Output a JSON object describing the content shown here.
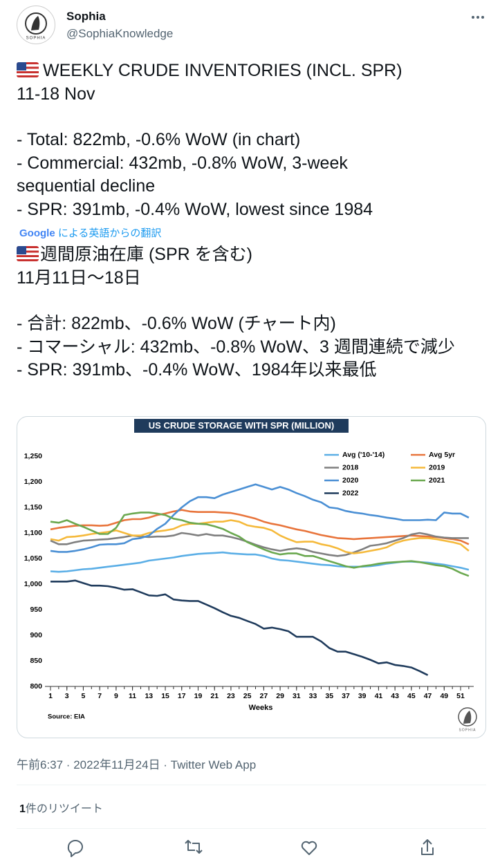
{
  "tweet": {
    "name": "Sophia",
    "handle": "@SophiaKnowledge",
    "avatar_text": "SOPHIA",
    "original": {
      "headline": "WEEKLY CRUDE INVENTORIES (INCL. SPR)",
      "date": "11-18 Nov",
      "items": [
        "- Total: 822mb, -0.6% WoW (in chart)",
        "- Commercial: 432mb, -0.8% WoW, 3-week sequential decline",
        "- SPR: 391mb, -0.4% WoW, lowest since 1984"
      ]
    },
    "translation_provider": "Google",
    "translation_note": "による英語からの翻訳",
    "translation": {
      "headline": "週間原油在庫 (SPR を含む)",
      "date": "11月11日～18日",
      "items": [
        "- 合計: 822mb、-0.6% WoW (チャート内)",
        "- コマーシャル: 432mb、-0.8% WoW、3 週間連続で減少",
        "- SPR: 391mb、-0.4% WoW、1984年以来最低"
      ]
    },
    "timestamp": "午前6:37 · 2022年11月24日 · Twitter Web App",
    "retweet_count": "1",
    "retweet_label": "件のリツイート"
  },
  "chart_data": {
    "type": "line",
    "title": "US CRUDE STORAGE WITH SPR (MILLION)",
    "x_label": "Weeks",
    "source": "Source: EIA",
    "watermark": "SOPHIA",
    "x": [
      1,
      2,
      3,
      4,
      5,
      6,
      7,
      8,
      9,
      10,
      11,
      12,
      13,
      14,
      15,
      16,
      17,
      18,
      19,
      20,
      21,
      22,
      23,
      24,
      25,
      26,
      27,
      28,
      29,
      30,
      31,
      32,
      33,
      34,
      35,
      36,
      37,
      38,
      39,
      40,
      41,
      42,
      43,
      44,
      45,
      46,
      47,
      48,
      49,
      50,
      51,
      52
    ],
    "xlim": [
      0.5,
      52.5
    ],
    "xticks": [
      1,
      3,
      5,
      7,
      9,
      11,
      13,
      15,
      17,
      19,
      21,
      23,
      25,
      27,
      29,
      31,
      33,
      35,
      37,
      39,
      41,
      43,
      45,
      47,
      49,
      51
    ],
    "ylim": [
      800,
      1250
    ],
    "yticks": [
      800,
      850,
      900,
      950,
      {
        "value": 1000,
        "label": "1,000"
      },
      {
        "value": 1050,
        "label": "1,050"
      },
      {
        "value": 1100,
        "label": "1,100"
      },
      {
        "value": 1150,
        "label": "1,150"
      },
      {
        "value": 1200,
        "label": "1,200"
      },
      {
        "value": 1250,
        "label": "1,250"
      }
    ],
    "series": [
      {
        "name": "Avg ('10-'14)",
        "color": "#5aaee6",
        "values": [
          1025,
          1024,
          1025,
          1027,
          1029,
          1030,
          1032,
          1034,
          1036,
          1038,
          1040,
          1042,
          1046,
          1048,
          1050,
          1052,
          1055,
          1057,
          1059,
          1060,
          1061,
          1062,
          1060,
          1059,
          1058,
          1058,
          1055,
          1050,
          1047,
          1046,
          1044,
          1042,
          1040,
          1038,
          1037,
          1035,
          1034,
          1034,
          1034,
          1035,
          1037,
          1040,
          1042,
          1044,
          1044,
          1043,
          1042,
          1040,
          1038,
          1035,
          1032,
          1028
        ]
      },
      {
        "name": "Avg 5yr",
        "color": "#e8743b",
        "values": [
          1107,
          1110,
          1112,
          1114,
          1115,
          1115,
          1114,
          1115,
          1120,
          1125,
          1127,
          1127,
          1130,
          1135,
          1138,
          1142,
          1145,
          1142,
          1141,
          1141,
          1141,
          1140,
          1139,
          1136,
          1132,
          1128,
          1122,
          1118,
          1115,
          1111,
          1107,
          1104,
          1100,
          1096,
          1093,
          1090,
          1089,
          1088,
          1089,
          1090,
          1091,
          1092,
          1093,
          1094,
          1095,
          1094,
          1093,
          1092,
          1090,
          1088,
          1085,
          1078
        ]
      },
      {
        "name": "2018",
        "color": "#7f7f7f",
        "values": [
          1085,
          1078,
          1078,
          1082,
          1085,
          1086,
          1087,
          1088,
          1090,
          1092,
          1095,
          1093,
          1092,
          1093,
          1093,
          1095,
          1100,
          1098,
          1095,
          1098,
          1095,
          1095,
          1092,
          1088,
          1083,
          1077,
          1072,
          1068,
          1065,
          1068,
          1070,
          1068,
          1063,
          1060,
          1057,
          1055,
          1057,
          1062,
          1068,
          1075,
          1077,
          1080,
          1085,
          1090,
          1097,
          1100,
          1097,
          1093,
          1091,
          1090,
          1090,
          1090
        ]
      },
      {
        "name": "2019",
        "color": "#f5b93a",
        "values": [
          1088,
          1085,
          1092,
          1093,
          1095,
          1098,
          1100,
          1102,
          1105,
          1100,
          1095,
          1095,
          1100,
          1103,
          1105,
          1108,
          1115,
          1118,
          1118,
          1120,
          1122,
          1122,
          1125,
          1122,
          1115,
          1112,
          1110,
          1105,
          1095,
          1088,
          1082,
          1083,
          1083,
          1078,
          1075,
          1070,
          1063,
          1060,
          1062,
          1065,
          1068,
          1072,
          1080,
          1085,
          1088,
          1090,
          1090,
          1088,
          1085,
          1082,
          1078,
          1065
        ]
      },
      {
        "name": "2020",
        "color": "#4a8fd4",
        "values": [
          1065,
          1063,
          1063,
          1065,
          1068,
          1072,
          1077,
          1078,
          1078,
          1080,
          1088,
          1090,
          1095,
          1108,
          1118,
          1135,
          1150,
          1162,
          1170,
          1170,
          1168,
          1175,
          1180,
          1185,
          1190,
          1195,
          1190,
          1185,
          1190,
          1185,
          1178,
          1172,
          1165,
          1160,
          1150,
          1148,
          1143,
          1140,
          1138,
          1135,
          1133,
          1130,
          1128,
          1125,
          1125,
          1125,
          1126,
          1125,
          1140,
          1138,
          1138,
          1130
        ]
      },
      {
        "name": "2021",
        "color": "#6aa84f",
        "values": [
          1122,
          1120,
          1125,
          1118,
          1112,
          1105,
          1098,
          1098,
          1110,
          1135,
          1138,
          1140,
          1140,
          1138,
          1135,
          1128,
          1125,
          1120,
          1118,
          1117,
          1113,
          1108,
          1100,
          1093,
          1082,
          1075,
          1068,
          1062,
          1058,
          1060,
          1060,
          1055,
          1055,
          1050,
          1045,
          1040,
          1035,
          1032,
          1035,
          1037,
          1040,
          1042,
          1043,
          1044,
          1045,
          1043,
          1040,
          1037,
          1035,
          1030,
          1022,
          1016
        ]
      },
      {
        "name": "2022",
        "color": "#1f3b5c",
        "values": [
          1005,
          1005,
          1005,
          1007,
          1002,
          997,
          997,
          996,
          993,
          989,
          990,
          984,
          978,
          977,
          980,
          970,
          968,
          967,
          967,
          960,
          953,
          945,
          938,
          934,
          928,
          922,
          913,
          915,
          912,
          908,
          897,
          897,
          897,
          888,
          875,
          868,
          868,
          863,
          858,
          852,
          845,
          847,
          842,
          840,
          837,
          830,
          822,
          null,
          null,
          null,
          null,
          null
        ]
      }
    ]
  }
}
